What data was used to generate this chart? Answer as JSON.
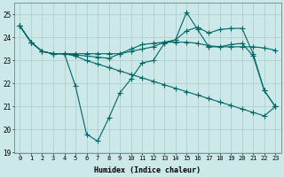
{
  "xlabel": "Humidex (Indice chaleur)",
  "bg_color": "#cce8e8",
  "grid_color": "#aacccc",
  "line_color": "#006666",
  "xlim": [
    -0.5,
    23.5
  ],
  "ylim": [
    19,
    25.5
  ],
  "yticks": [
    19,
    20,
    21,
    22,
    23,
    24,
    25
  ],
  "xticks": [
    0,
    1,
    2,
    3,
    4,
    5,
    6,
    7,
    8,
    9,
    10,
    11,
    12,
    13,
    14,
    15,
    16,
    17,
    18,
    19,
    20,
    21,
    22,
    23
  ],
  "line1": [
    24.5,
    23.8,
    23.4,
    23.3,
    23.3,
    21.9,
    19.8,
    19.5,
    20.5,
    21.6,
    22.2,
    22.9,
    23.0,
    23.75,
    23.9,
    25.1,
    24.35,
    23.6,
    23.6,
    23.7,
    23.75,
    23.2,
    21.7,
    21.0
  ],
  "line2": [
    24.5,
    23.8,
    23.4,
    23.3,
    23.3,
    23.3,
    23.3,
    23.3,
    23.3,
    23.3,
    23.5,
    23.7,
    23.75,
    23.8,
    23.8,
    23.8,
    23.75,
    23.65,
    23.6,
    23.6,
    23.6,
    23.6,
    23.55,
    23.45
  ],
  "line3": [
    24.5,
    23.8,
    23.4,
    23.3,
    23.3,
    23.2,
    23.0,
    22.85,
    22.7,
    22.55,
    22.4,
    22.25,
    22.1,
    21.95,
    21.8,
    21.65,
    21.5,
    21.35,
    21.2,
    21.05,
    20.9,
    20.75,
    20.6,
    21.0
  ],
  "line4": [
    24.5,
    23.8,
    23.4,
    23.3,
    23.3,
    23.25,
    23.2,
    23.15,
    23.1,
    23.3,
    23.4,
    23.5,
    23.6,
    23.8,
    23.9,
    24.3,
    24.45,
    24.2,
    24.35,
    24.4,
    24.4,
    23.3,
    21.7,
    21.0
  ]
}
